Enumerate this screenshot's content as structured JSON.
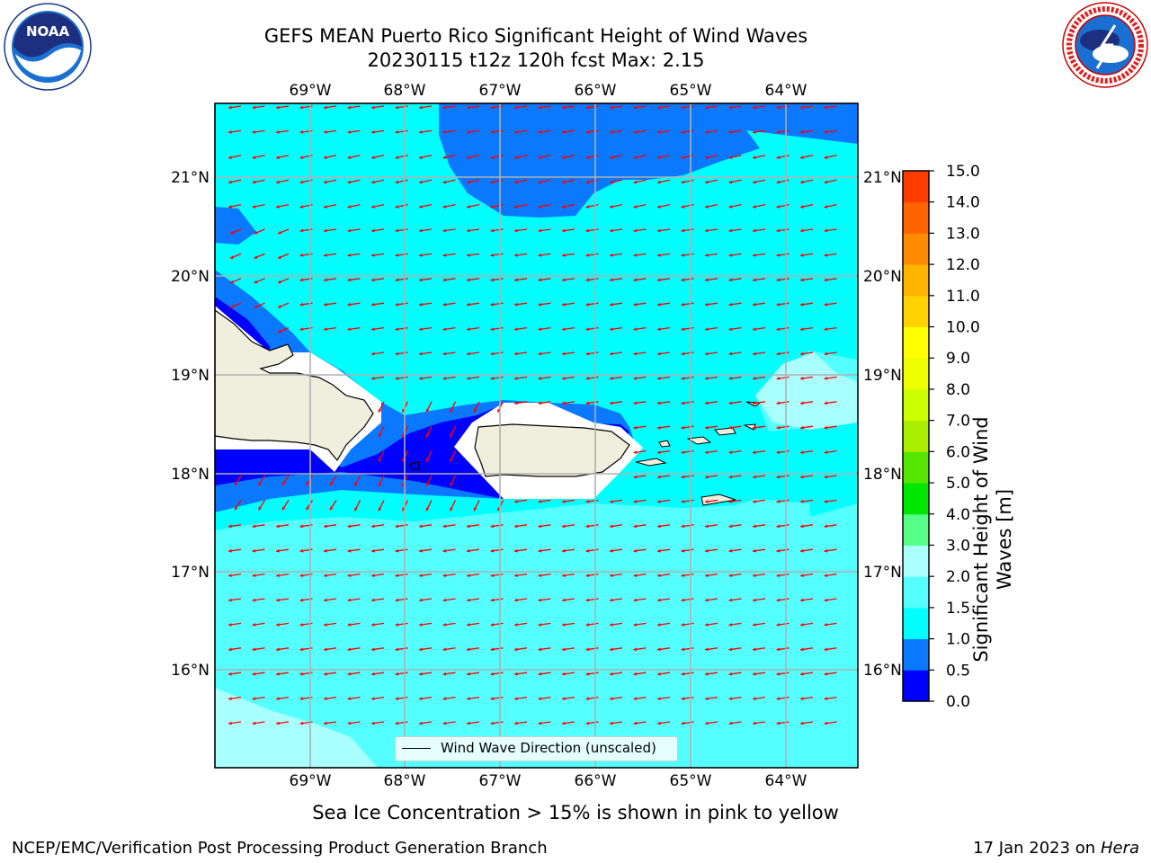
{
  "title_line1": "GEFS MEAN Puerto Rico Significant Height of Wind Waves",
  "title_line2": "20230115 t12z 120h fcst   Max: 2.15",
  "logos": {
    "left": "noaa-logo",
    "right": "nws-logo"
  },
  "lon_labels": [
    "69°W",
    "68°W",
    "67°W",
    "66°W",
    "65°W",
    "64°W"
  ],
  "lat_labels": [
    "21°N",
    "20°N",
    "19°N",
    "18°N",
    "17°N",
    "16°N"
  ],
  "colorbar": {
    "ticks": [
      "15.0",
      "14.0",
      "13.0",
      "12.0",
      "11.0",
      "10.0",
      "9.0",
      "8.0",
      "7.0",
      "6.0",
      "5.0",
      "4.0",
      "3.0",
      "2.0",
      "1.5",
      "1.0",
      "0.5",
      "0.0"
    ],
    "colors": [
      "#0000ff",
      "#0a78ff",
      "#00ffff",
      "#55ffff",
      "#aaffff",
      "#55ff88",
      "#00e600",
      "#55e600",
      "#aaee00",
      "#ccff00",
      "#eeff00",
      "#ffff00",
      "#ffd200",
      "#ffb400",
      "#ff8c00",
      "#ff6400",
      "#ff3c00",
      "#ff0000"
    ],
    "label": "Significant Height of Wind Waves [m]"
  },
  "legend": {
    "label": "Wind Wave Direction (unscaled)"
  },
  "colors": {
    "land": "#f0eedc",
    "arrow": "#ff0000",
    "grid": "#b0b0b0",
    "c0_05": "#0000ff",
    "c05_1": "#0a78ff",
    "c1_15": "#00ffff",
    "c15_2": "#55ffff",
    "c2_3": "#aaffff"
  },
  "sea_ice_note": "Sea Ice Concentration > 15% is shown in pink to yellow",
  "footer_left": "NCEP/EMC/Verification Post Processing Product Generation Branch",
  "footer_right_date": "17 Jan 2023 on ",
  "footer_right_host": "Hera"
}
